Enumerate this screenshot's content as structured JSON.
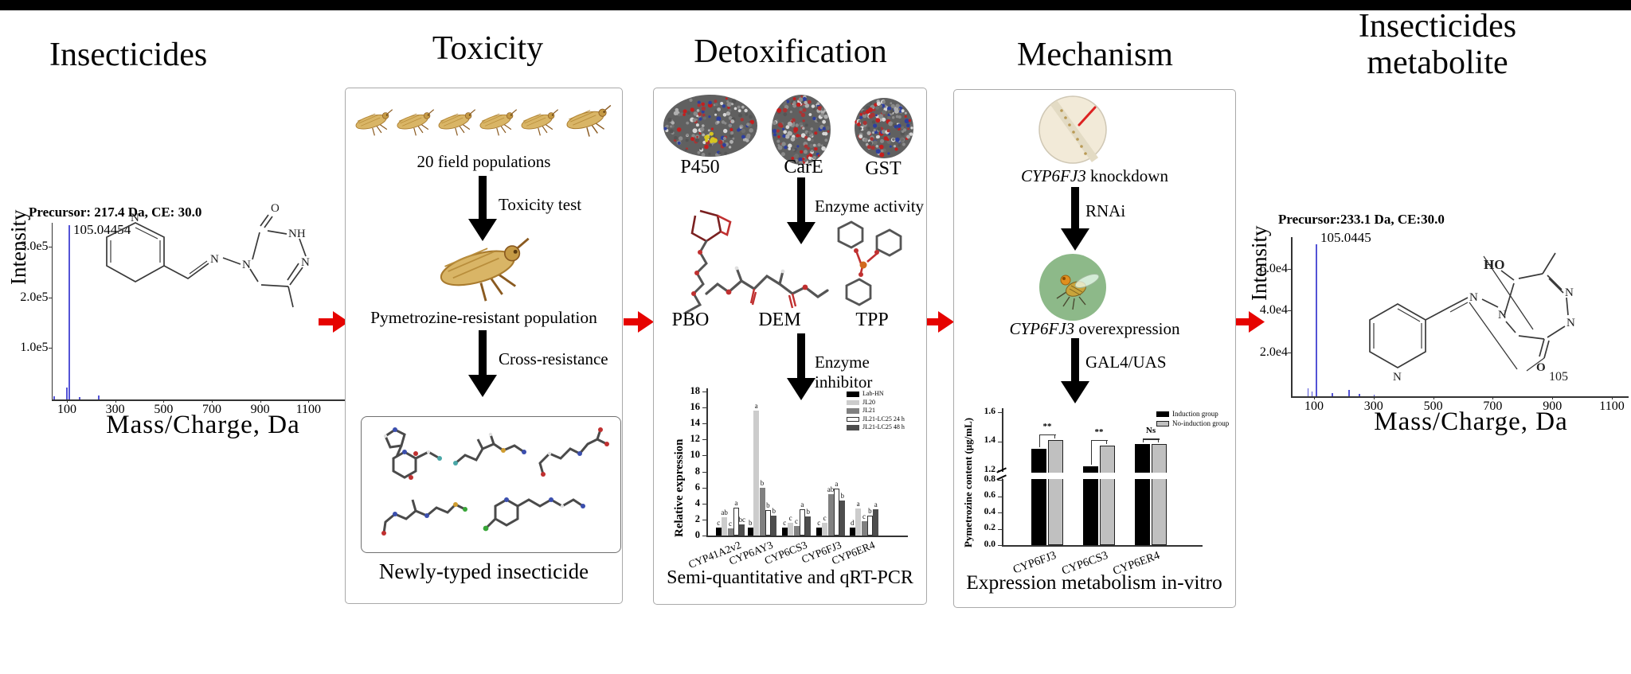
{
  "window": {
    "top_bar_color": "#000000",
    "background": "#ffffff"
  },
  "titles": {
    "insecticides": "Insecticides",
    "toxicity": "Toxicity",
    "detoxification": "Detoxification",
    "mechanism": "Mechanism",
    "metabolite_line1": "Insecticides",
    "metabolite_line2": "metabolite"
  },
  "atoms": {
    "n": "N",
    "nh": "NH",
    "o": "O",
    "ho": "HO"
  },
  "left_spectrum": {
    "ylabel": "Intensity",
    "xlabel": "Mass/Charge, Da",
    "precursor": "Precursor: 217.4 Da, CE: 30.0",
    "base_peak_label": "105.04454"
  },
  "right_spectrum": {
    "ylabel": "Intensity",
    "xlabel": "Mass/Charge, Da",
    "precursor": "Precursor:233.1 Da, CE:30.0",
    "base_peak_label": "105.0445",
    "fragment_label": "105"
  },
  "toxicity_panel": {
    "populations_caption": "20 field populations",
    "step1_label": "Toxicity test",
    "resistant_caption": "Pymetrozine-resistant population",
    "step2_label": "Cross-resistance",
    "box_caption": "Newly-typed insecticide"
  },
  "detox_panel": {
    "protein_labels": [
      "P450",
      "CarE",
      "GST"
    ],
    "step1_label": "Enzyme activity",
    "inhibitor_labels": [
      "PBO",
      "DEM",
      "TPP"
    ],
    "step2_label": "Enzyme inhibitor",
    "caption": "Semi-quantitative and qRT-PCR"
  },
  "mechanism_panel": {
    "knockdown_gene": "CYP6FJ3",
    "knockdown_suffix": " knockdown",
    "step1_label": "RNAi",
    "overexpression_gene": "CYP6FJ3",
    "overexpression_suffix": " overexpression",
    "step2_label": "GAL4/UAS",
    "caption": "Expression metabolism in-vitro"
  },
  "chart_data": [
    {
      "id": "left_ms",
      "type": "bar",
      "title": "Precursor: 217.4 Da, CE: 30.0",
      "xlabel": "Mass/Charge, Da",
      "ylabel": "Intensity",
      "yticks": [
        "3.0e5",
        "2.0e5",
        "1.0e5"
      ],
      "xticks": [
        100,
        300,
        500,
        700,
        900,
        1100
      ],
      "xlim": [
        60,
        1160
      ],
      "base_peak_mz": 105.04454,
      "base_peak_intensity": "3.7e5",
      "peaks": [
        {
          "mz": 45,
          "rel": 0.02
        },
        {
          "mz": 97,
          "rel": 0.07
        },
        {
          "mz": 105,
          "rel": 1.0
        },
        {
          "mz": 150,
          "rel": 0.015
        },
        {
          "mz": 229,
          "rel": 0.022
        }
      ]
    },
    {
      "id": "detox_qpcr",
      "type": "bar",
      "ylabel": "Relative expression",
      "ylim": [
        0,
        18
      ],
      "ytick_step": 2,
      "grid": false,
      "legend_position": "top-right",
      "categories": [
        "CYP41A2v2",
        "CYP6AY3",
        "CYP6CS3",
        "CYP6FJ3",
        "CYP6ER4"
      ],
      "series": [
        {
          "name": "Lab-HN",
          "color": "#000000",
          "values": [
            1.0,
            1.0,
            1.0,
            1.0,
            1.0
          ],
          "letters": [
            "c",
            "b",
            "c",
            "c",
            "d"
          ]
        },
        {
          "name": "JL20",
          "color": "#cccccc",
          "values": [
            2.3,
            15.6,
            1.6,
            1.6,
            3.4
          ],
          "letters": [
            "ab",
            "a",
            "c",
            "c",
            "a"
          ]
        },
        {
          "name": "JL21",
          "color": "#808080",
          "values": [
            0.9,
            6.0,
            1.2,
            5.2,
            1.8
          ],
          "letters": [
            "c",
            "b",
            "c",
            "ab",
            "c"
          ]
        },
        {
          "name": "JL21-LC25 24 h",
          "color": "#ffffff",
          "values": [
            3.5,
            3.2,
            3.3,
            5.9,
            2.5
          ],
          "letters": [
            "a",
            "b",
            "a",
            "a",
            "b"
          ]
        },
        {
          "name": "JL21-LC25 48 h",
          "color": "#4d4d4d",
          "values": [
            1.4,
            2.5,
            2.4,
            4.4,
            3.3
          ],
          "letters": [
            "bc",
            "b",
            "b",
            "b",
            "a"
          ]
        }
      ]
    },
    {
      "id": "mech_content",
      "type": "bar",
      "ylabel": "Pymetrozine content (μg/mL)",
      "axis_break": [
        0.8,
        1.2
      ],
      "yticks_lower": [
        "0.0",
        "0.2",
        "0.4",
        "0.6",
        "0.8"
      ],
      "yticks_upper": [
        "1.2",
        "1.4",
        "1.6"
      ],
      "ylim": [
        0,
        1.6
      ],
      "legend_position": "top-right",
      "categories": [
        "CYP6FJ3",
        "CYP6CS3",
        "CYP6ER4"
      ],
      "series": [
        {
          "name": "Induction group",
          "color": "#000000",
          "values": [
            1.35,
            1.23,
            1.38
          ]
        },
        {
          "name": "No-induction group",
          "color": "#c0c0c0",
          "values": [
            1.41,
            1.37,
            1.38
          ]
        }
      ],
      "significance": [
        "**",
        "**",
        "Ns"
      ]
    },
    {
      "id": "right_ms",
      "type": "bar",
      "title": "Precursor:233.1 Da, CE:30.0",
      "xlabel": "Mass/Charge, Da",
      "ylabel": "Intensity",
      "yticks": [
        "6.0e4",
        "4.0e4",
        "2.0e4"
      ],
      "xticks": [
        100,
        300,
        500,
        700,
        900,
        1100
      ],
      "xlim": [
        60,
        1160
      ],
      "base_peak_mz": 105.0445,
      "base_peak_intensity": "7.5e4",
      "fragment_annotation": "105",
      "peaks": [
        {
          "mz": 78,
          "rel": 0.05
        },
        {
          "mz": 91,
          "rel": 0.03
        },
        {
          "mz": 105,
          "rel": 1.0
        },
        {
          "mz": 160,
          "rel": 0.02
        },
        {
          "mz": 215,
          "rel": 0.04
        },
        {
          "mz": 250,
          "rel": 0.015
        },
        {
          "mz": 300,
          "rel": 0.012
        }
      ]
    }
  ]
}
